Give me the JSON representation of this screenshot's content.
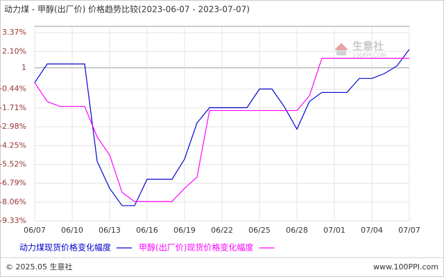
{
  "chart_data": {
    "type": "line",
    "title": "动力煤 - 甲醇(出厂价) 价格趋势比较(2023-06-07 - 2023-07-07)",
    "categories": [
      "06/07",
      null,
      null,
      "06/10",
      null,
      null,
      "06/13",
      null,
      null,
      "06/16",
      null,
      null,
      "06/19",
      null,
      null,
      "06/22",
      null,
      null,
      "06/25",
      null,
      null,
      "06/28",
      null,
      null,
      "07/01",
      null,
      null,
      "07/04",
      null,
      null,
      "07/07"
    ],
    "series": [
      {
        "name": "动力煤现货价格变化幅度",
        "color": "#0000cc",
        "values": [
          0.0,
          1.26,
          1.26,
          1.26,
          1.26,
          -5.3,
          -7.13,
          -8.3,
          -8.3,
          -6.52,
          -6.52,
          -6.52,
          -5.16,
          -2.72,
          -1.69,
          -1.69,
          -1.69,
          -1.69,
          -0.43,
          -0.43,
          -1.64,
          -3.14,
          -1.27,
          -0.66,
          -0.66,
          -0.66,
          0.28,
          0.28,
          0.61,
          1.12,
          2.25
        ]
      },
      {
        "name": "甲醇(出厂价)现货价格变化幅度",
        "color": "#ff00ff",
        "values": [
          0.0,
          -1.27,
          -1.6,
          -1.6,
          -1.6,
          -3.66,
          -4.88,
          -7.41,
          -8.02,
          -8.02,
          -8.02,
          -8.02,
          -7.13,
          -6.38,
          -1.88,
          -1.88,
          -1.88,
          -1.88,
          -1.88,
          -1.88,
          -1.88,
          -1.88,
          -0.89,
          1.64,
          1.64,
          1.64,
          1.64,
          1.64,
          1.64,
          1.64,
          1.64
        ]
      }
    ],
    "ylim": [
      -9.33,
      3.8
    ],
    "yticks": [
      {
        "value": 3.37,
        "label": "3.37%"
      },
      {
        "value": 2.1,
        "label": "2.10%"
      },
      1,
      {
        "value": -0.44,
        "label": "-0.44%"
      },
      {
        "value": -1.71,
        "label": "-1.71%"
      },
      {
        "value": -2.98,
        "label": "-2.98%"
      },
      {
        "value": -4.25,
        "label": "-4.25%"
      },
      {
        "value": -5.52,
        "label": "-5.52%"
      },
      {
        "value": -6.79,
        "label": "-6.79%"
      },
      {
        "value": -8.06,
        "label": "-8.06%"
      },
      {
        "value": -9.33,
        "label": "-9.33%"
      }
    ],
    "grid": true,
    "watermark": [
      "生意社",
      "100PPI.COM"
    ],
    "footer": {
      "left": "© 2025.05 生意社",
      "right": "www.100PPI.com"
    }
  }
}
